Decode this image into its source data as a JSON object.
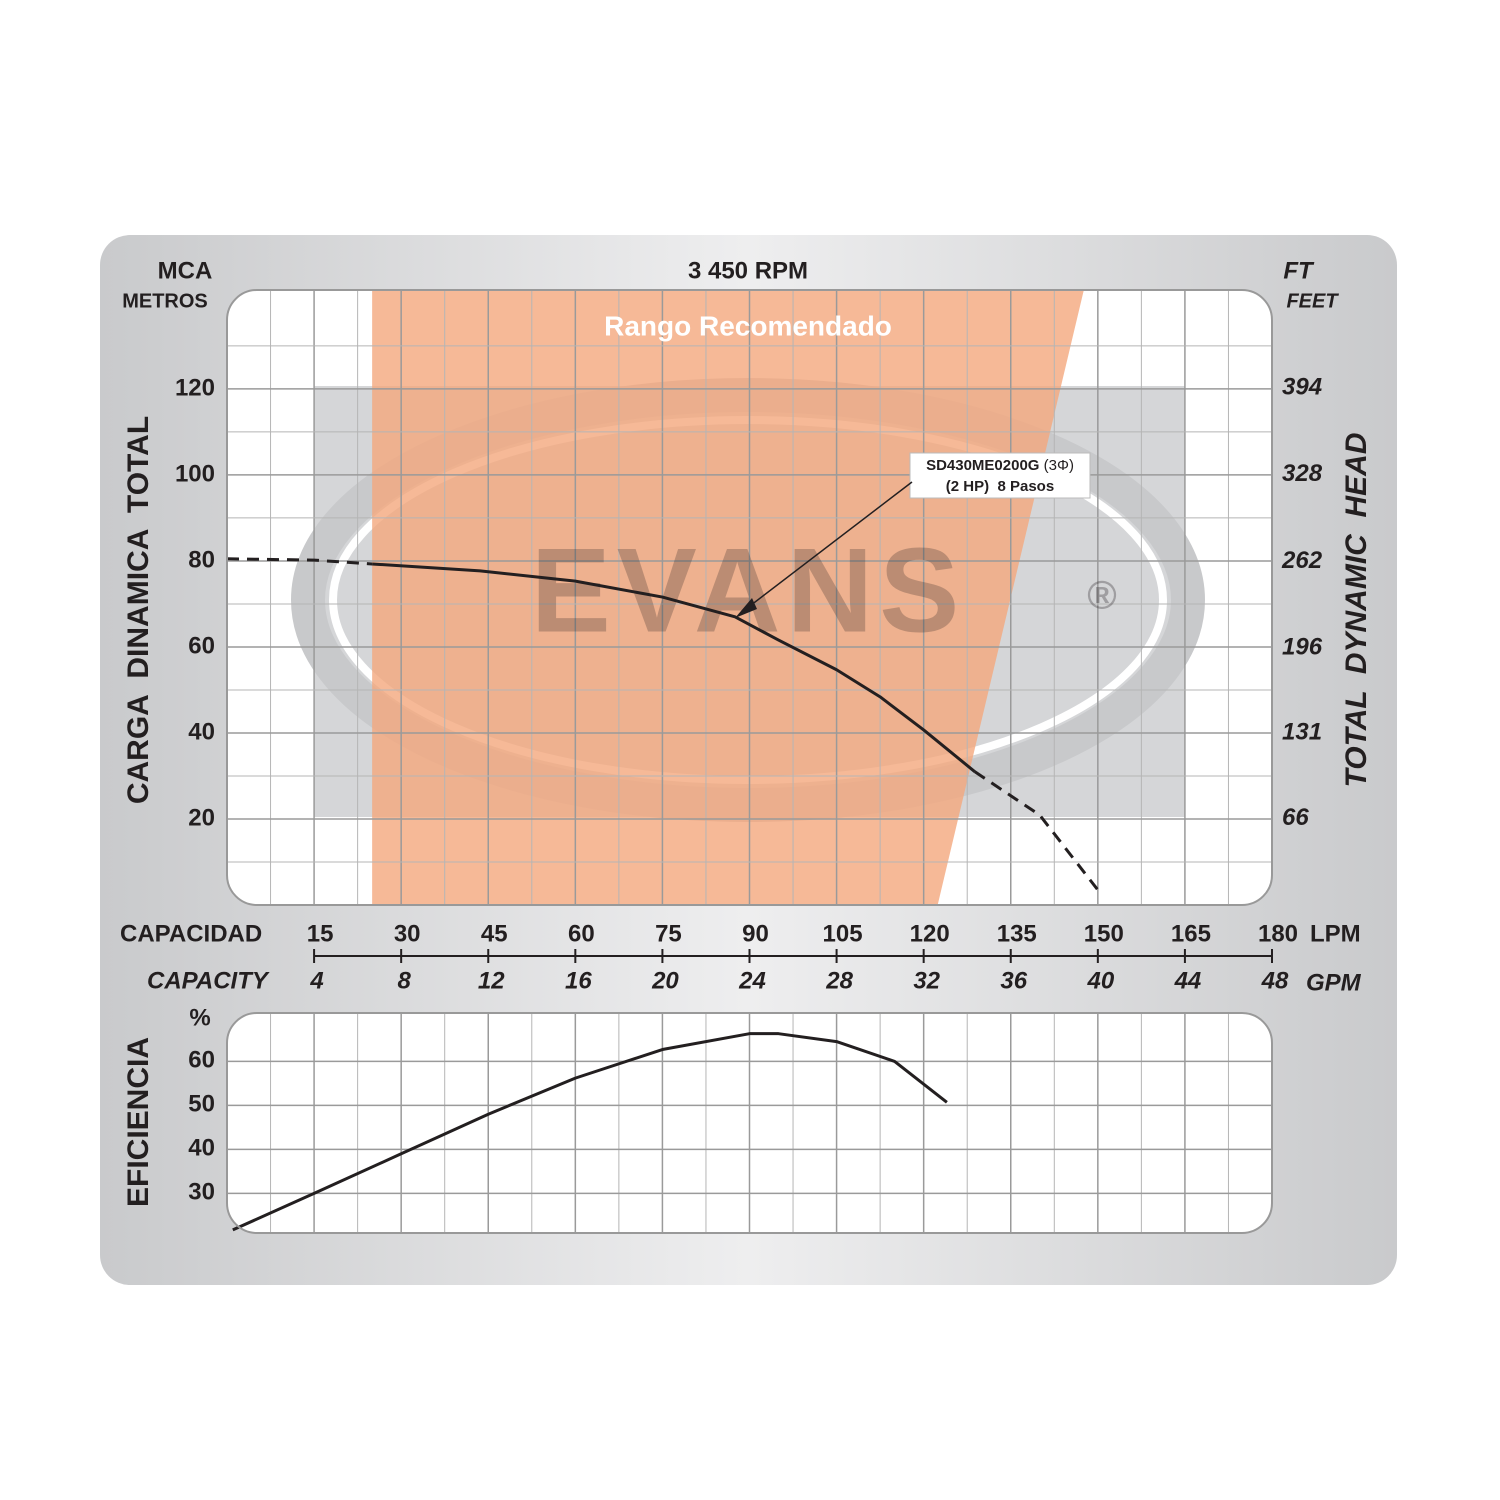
{
  "chart_data": [
    {
      "type": "line",
      "title": "3 450 RPM",
      "y_unit": "MCA",
      "y_unit_sub": "METROS",
      "y2_unit": "FT",
      "y2_unit_sub": "FEET",
      "y_label": "CARGA  DINAMICA  TOTAL",
      "y2_label": "TOTAL  DYNAMIC  HEAD",
      "x_label": "CAPACIDAD",
      "x_unit": "LPM",
      "x2_label": "CAPACITY",
      "x2_unit": "GPM",
      "xlim": [
        0,
        180
      ],
      "xticks": [
        15,
        30,
        45,
        60,
        75,
        90,
        105,
        120,
        135,
        150,
        165,
        180
      ],
      "xminor": [
        7.5,
        22.5,
        37.5,
        52.5,
        67.5,
        82.5,
        97.5,
        112.5,
        127.5,
        142.5,
        157.5,
        172.5
      ],
      "x2lim": [
        0,
        48
      ],
      "x2ticks": [
        4,
        8,
        12,
        16,
        20,
        24,
        28,
        32,
        36,
        40,
        44,
        48
      ],
      "ylim": [
        0,
        143
      ],
      "yticks": [
        20,
        40,
        60,
        80,
        100,
        120
      ],
      "yminor": [
        10,
        30,
        50,
        70,
        90,
        110,
        130
      ],
      "y2lim": [
        0,
        469
      ],
      "y2ticks": [
        66,
        131,
        196,
        262,
        328,
        394
      ],
      "grid": true,
      "color": "#231f20",
      "recommended_range": {
        "label": "Rango Recomendado",
        "x_left": 25,
        "x_right_top": 148,
        "x_right_bottom": 122,
        "color": "#f4a77d"
      },
      "watermark": {
        "text": "EVANS",
        "mark": "®"
      },
      "annotation": {
        "model": "SD430ME0200G",
        "phase": " (3Φ)",
        "line2": "(2 HP)  8 Pasos"
      },
      "series": [
        {
          "style": "dashed",
          "x": [
            0,
            15,
            25
          ],
          "values": [
            80.5,
            80.2,
            79.3
          ]
        },
        {
          "style": "solid",
          "x": [
            25,
            43.6,
            60,
            75,
            87.5,
            95,
            105,
            112.5,
            120,
            128.8
          ],
          "values": [
            79.3,
            77.7,
            75.3,
            71.6,
            67,
            61.6,
            54.7,
            48.4,
            40.7,
            31
          ]
        },
        {
          "style": "dashed",
          "x": [
            128.8,
            140,
            150
          ],
          "values": [
            31,
            20.9,
            3.5
          ]
        }
      ]
    },
    {
      "type": "line",
      "y_label": "EFICIENCIA",
      "y_unit": "%",
      "xlim": [
        0,
        180
      ],
      "ylim": [
        21,
        71
      ],
      "yticks": [
        30,
        40,
        50,
        60
      ],
      "grid": true,
      "color": "#231f20",
      "series": [
        {
          "style": "solid",
          "x": [
            1,
            15,
            30,
            45,
            60,
            75,
            90,
            95,
            105,
            115,
            124
          ],
          "values": [
            21.7,
            30,
            39,
            48,
            56.2,
            62.7,
            66.3,
            66.3,
            64.5,
            60,
            50.7
          ]
        }
      ]
    }
  ]
}
